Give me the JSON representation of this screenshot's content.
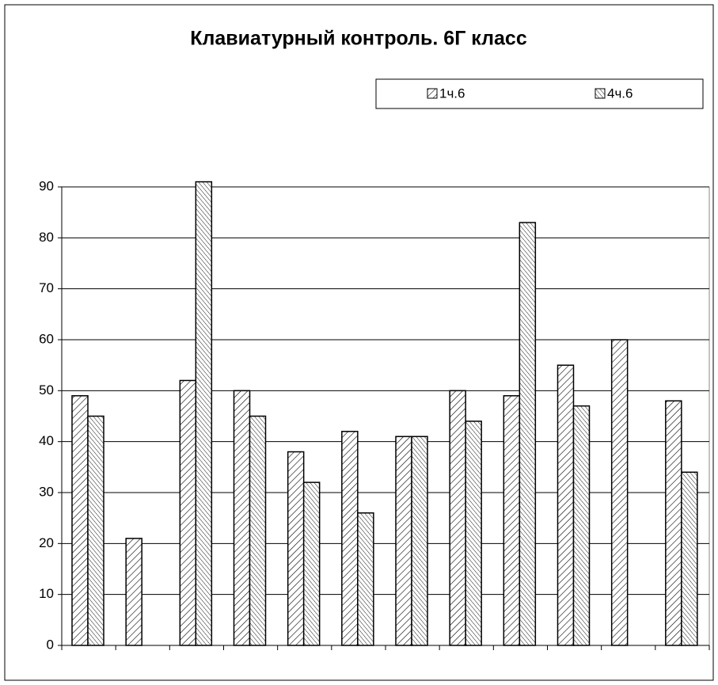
{
  "chart_data": {
    "type": "bar",
    "title": "Клавиатурный контроль. 6Г класс",
    "categories": [
      null,
      null,
      null,
      null,
      null,
      null,
      null,
      null,
      null,
      null,
      null,
      null
    ],
    "series": [
      {
        "name": "1ч.6",
        "color": "#000000",
        "values": [
          49,
          21,
          52,
          50,
          38,
          42,
          41,
          50,
          49,
          55,
          60,
          48
        ]
      },
      {
        "name": "4ч.6",
        "color": "#000000",
        "values": [
          45,
          null,
          91,
          45,
          32,
          26,
          41,
          44,
          83,
          47,
          null,
          34
        ]
      }
    ],
    "ylim": [
      0,
      90
    ],
    "yticks": [
      0,
      10,
      20,
      30,
      40,
      50,
      60,
      70,
      80,
      90
    ],
    "grid": true,
    "legend": "top-right"
  }
}
